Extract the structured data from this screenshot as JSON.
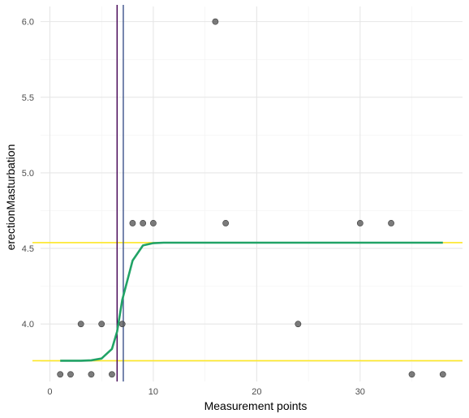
{
  "chart_data": {
    "type": "scatter",
    "title": "",
    "xlabel": "Measurement points",
    "ylabel": "erectionMasturbation",
    "xlim": [
      -0.9,
      39.9
    ],
    "ylim": [
      3.62,
      6.1
    ],
    "x_ticks": [
      0,
      10,
      20,
      30
    ],
    "x_tick_labels": [
      "0",
      "10",
      "20",
      "30"
    ],
    "y_ticks": [
      4.0,
      4.5,
      5.0,
      5.5,
      6.0
    ],
    "y_tick_labels": [
      "4.0",
      "4.5",
      "5.0",
      "5.5",
      "6.0"
    ],
    "grid": true,
    "legend": "none",
    "points": [
      {
        "x": 1,
        "y": 3.667
      },
      {
        "x": 2,
        "y": 3.667
      },
      {
        "x": 3,
        "y": 4.0
      },
      {
        "x": 4,
        "y": 3.667
      },
      {
        "x": 5,
        "y": 4.0
      },
      {
        "x": 6,
        "y": 3.667
      },
      {
        "x": 7,
        "y": 4.0
      },
      {
        "x": 8,
        "y": 4.667
      },
      {
        "x": 9,
        "y": 4.667
      },
      {
        "x": 10,
        "y": 4.667
      },
      {
        "x": 16,
        "y": 6.0
      },
      {
        "x": 17,
        "y": 4.667
      },
      {
        "x": 24,
        "y": 4.0
      },
      {
        "x": 30,
        "y": 4.667
      },
      {
        "x": 33,
        "y": 4.667
      },
      {
        "x": 35,
        "y": 3.667
      },
      {
        "x": 38,
        "y": 3.667
      }
    ],
    "fit_curve": {
      "x": [
        1,
        2,
        3,
        4,
        5,
        6,
        6.5,
        7,
        8,
        9,
        10,
        11,
        15,
        20,
        25,
        30,
        35,
        38
      ],
      "y": [
        3.757,
        3.757,
        3.757,
        3.76,
        3.772,
        3.835,
        3.95,
        4.16,
        4.42,
        4.52,
        4.535,
        4.538,
        4.538,
        4.538,
        4.538,
        4.538,
        4.538,
        4.538
      ]
    },
    "hlines": [
      {
        "y": 4.538,
        "color": "#fde725"
      },
      {
        "y": 3.757,
        "color": "#fde725"
      }
    ],
    "vlines": [
      {
        "x": 6.5,
        "color": "#440154"
      },
      {
        "x": 7.1,
        "color": "#3b528b"
      }
    ],
    "colors": {
      "points": "#5a5a5a",
      "curve": "#21a366",
      "grid_major": "#e6e6e6",
      "grid_minor": "#f2f2f2"
    }
  }
}
